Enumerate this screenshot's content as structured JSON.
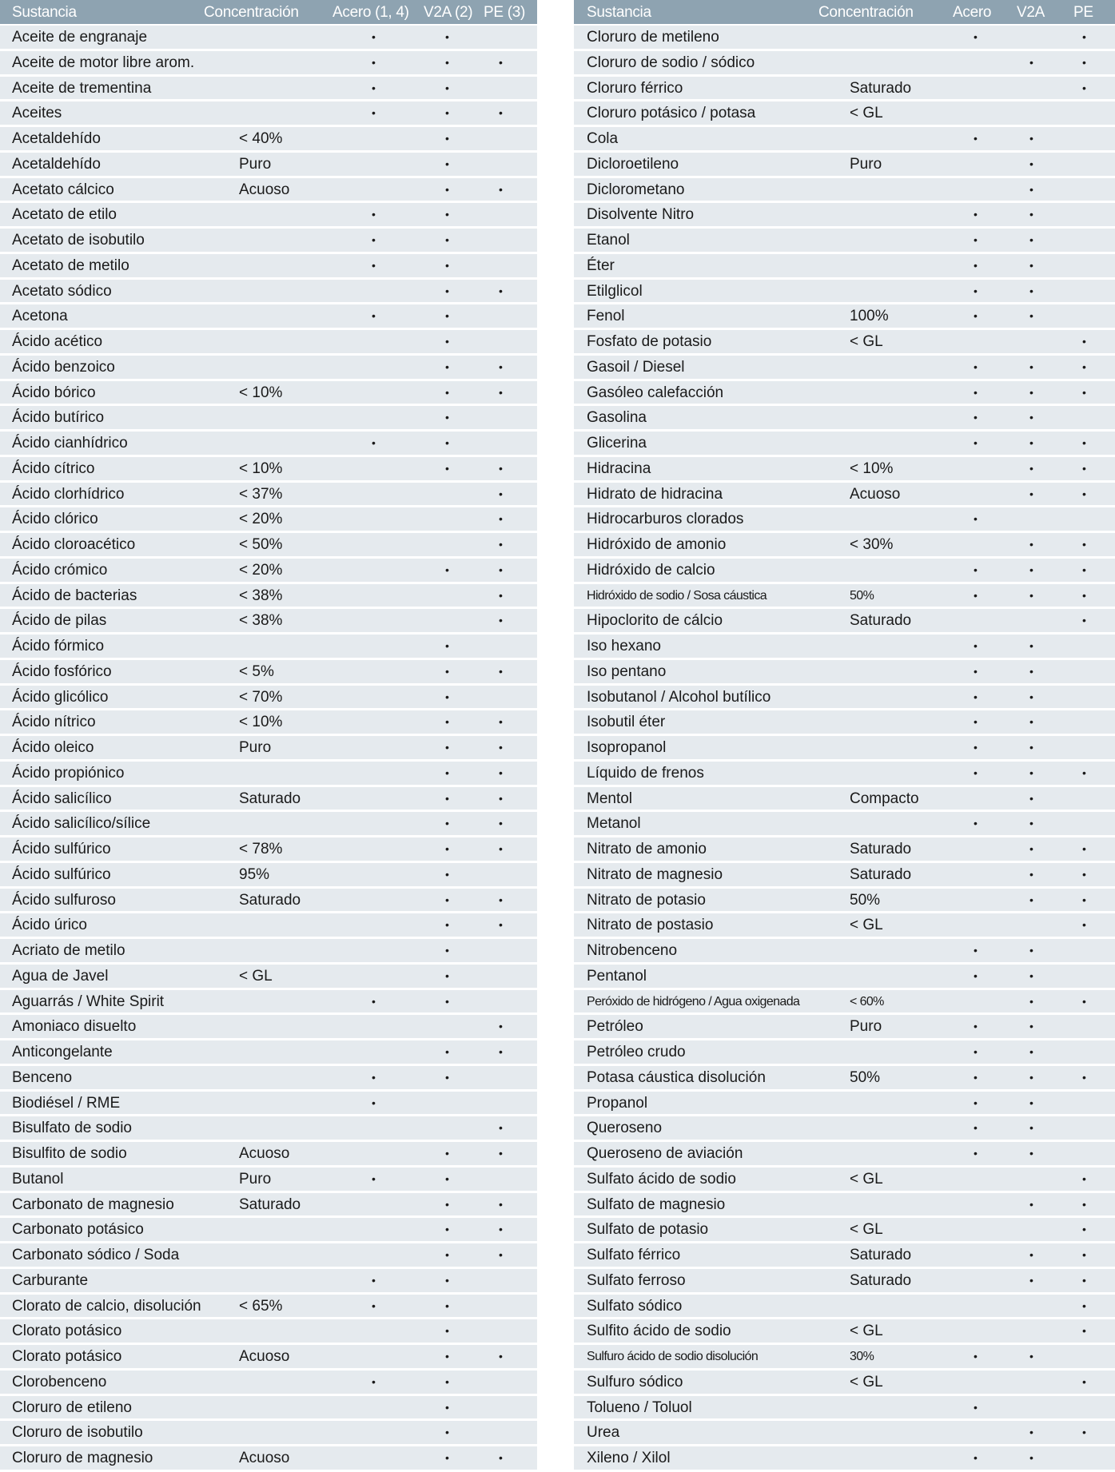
{
  "mark": "•",
  "left": {
    "headers": [
      "Sustancia",
      "Concentración",
      "Acero (1, 4)",
      "V2A (2)",
      "PE (3)"
    ],
    "rows": [
      [
        "Aceite de engranaje",
        "",
        true,
        true,
        false
      ],
      [
        "Aceite de motor libre arom.",
        "",
        true,
        true,
        true
      ],
      [
        "Aceite de trementina",
        "",
        true,
        true,
        false
      ],
      [
        "Aceites",
        "",
        true,
        true,
        true
      ],
      [
        "Acetaldehído",
        "< 40%",
        false,
        true,
        false
      ],
      [
        "Acetaldehído",
        "Puro",
        false,
        true,
        false
      ],
      [
        "Acetato cálcico",
        "Acuoso",
        false,
        true,
        true
      ],
      [
        "Acetato de etilo",
        "",
        true,
        true,
        false
      ],
      [
        "Acetato de isobutilo",
        "",
        true,
        true,
        false
      ],
      [
        "Acetato de metilo",
        "",
        true,
        true,
        false
      ],
      [
        "Acetato sódico",
        "",
        false,
        true,
        true
      ],
      [
        "Acetona",
        "",
        true,
        true,
        false
      ],
      [
        "Ácido acético",
        "",
        false,
        true,
        false
      ],
      [
        "Ácido benzoico",
        "",
        false,
        true,
        true
      ],
      [
        "Ácido bórico",
        "< 10%",
        false,
        true,
        true
      ],
      [
        "Ácido butírico",
        "",
        false,
        true,
        false
      ],
      [
        "Ácido cianhídrico",
        "",
        true,
        true,
        false
      ],
      [
        "Ácido cítrico",
        "< 10%",
        false,
        true,
        true
      ],
      [
        "Ácido clorhídrico",
        "< 37%",
        false,
        false,
        true
      ],
      [
        "Ácido clórico",
        "< 20%",
        false,
        false,
        true
      ],
      [
        "Ácido cloroacético",
        "< 50%",
        false,
        false,
        true
      ],
      [
        "Ácido crómico",
        "< 20%",
        false,
        true,
        true
      ],
      [
        "Ácido de bacterias",
        "< 38%",
        false,
        false,
        true
      ],
      [
        "Ácido de pilas",
        "< 38%",
        false,
        false,
        true
      ],
      [
        "Ácido fórmico",
        "",
        false,
        true,
        false
      ],
      [
        "Ácido fosfórico",
        "< 5%",
        false,
        true,
        true
      ],
      [
        "Ácido glicólico",
        "< 70%",
        false,
        true,
        false
      ],
      [
        "Ácido nítrico",
        "< 10%",
        false,
        true,
        true
      ],
      [
        "Ácido oleico",
        "Puro",
        false,
        true,
        true
      ],
      [
        "Ácido propiónico",
        "",
        false,
        true,
        true
      ],
      [
        "Ácido salicílico",
        "Saturado",
        false,
        true,
        true
      ],
      [
        "Ácido salicílico/sílice",
        "",
        false,
        true,
        true
      ],
      [
        "Ácido sulfúrico",
        "< 78%",
        false,
        true,
        true
      ],
      [
        "Ácido sulfúrico",
        "95%",
        false,
        true,
        false
      ],
      [
        "Ácido sulfuroso",
        "Saturado",
        false,
        true,
        true
      ],
      [
        "Ácido úrico",
        "",
        false,
        true,
        true
      ],
      [
        "Acriato de metilo",
        "",
        false,
        true,
        false
      ],
      [
        "Agua de Javel",
        "< GL",
        false,
        true,
        false
      ],
      [
        "Aguarrás / White Spirit",
        "",
        true,
        true,
        false
      ],
      [
        "Amoniaco disuelto",
        "",
        false,
        false,
        true
      ],
      [
        "Anticongelante",
        "",
        false,
        true,
        true
      ],
      [
        "Benceno",
        "",
        true,
        true,
        false
      ],
      [
        "Biodiésel / RME",
        "",
        true,
        false,
        false
      ],
      [
        "Bisulfato de sodio",
        "",
        false,
        false,
        true
      ],
      [
        "Bisulfito de sodio",
        "Acuoso",
        false,
        true,
        true
      ],
      [
        "Butanol",
        "Puro",
        true,
        true,
        false
      ],
      [
        "Carbonato de magnesio",
        "Saturado",
        false,
        true,
        true
      ],
      [
        "Carbonato potásico",
        "",
        false,
        true,
        true
      ],
      [
        "Carbonato sódico / Soda",
        "",
        false,
        true,
        true
      ],
      [
        "Carburante",
        "",
        true,
        true,
        false
      ],
      [
        "Clorato de calcio, disolución",
        "< 65%",
        true,
        true,
        false
      ],
      [
        "Clorato potásico",
        "",
        false,
        true,
        false
      ],
      [
        "Clorato potásico",
        "Acuoso",
        false,
        true,
        true
      ],
      [
        "Clorobenceno",
        "",
        true,
        true,
        false
      ],
      [
        "Cloruro de etileno",
        "",
        false,
        true,
        false
      ],
      [
        "Cloruro de isobutilo",
        "",
        false,
        true,
        false
      ],
      [
        "Cloruro de magnesio",
        "Acuoso",
        false,
        true,
        true
      ]
    ]
  },
  "right": {
    "headers": [
      "Sustancia",
      "Concentración",
      "Acero",
      "V2A",
      "PE"
    ],
    "rows": [
      [
        "Cloruro de metileno",
        "",
        true,
        false,
        true
      ],
      [
        "Cloruro de sodio / sódico",
        "",
        false,
        true,
        true
      ],
      [
        "Cloruro férrico",
        "Saturado",
        false,
        false,
        true
      ],
      [
        "Cloruro potásico / potasa",
        "< GL",
        false,
        false,
        false
      ],
      [
        "Cola",
        "",
        true,
        true,
        false
      ],
      [
        "Dicloroetileno",
        "Puro",
        false,
        true,
        false
      ],
      [
        "Diclorometano",
        "",
        false,
        true,
        false
      ],
      [
        "Disolvente Nitro",
        "",
        true,
        true,
        false
      ],
      [
        "Etanol",
        "",
        true,
        true,
        false
      ],
      [
        "Éter",
        "",
        true,
        true,
        false
      ],
      [
        "Etilglicol",
        "",
        true,
        true,
        false
      ],
      [
        "Fenol",
        "100%",
        true,
        true,
        false
      ],
      [
        "Fosfato de potasio",
        "< GL",
        false,
        false,
        true
      ],
      [
        "Gasoil / Diesel",
        "",
        true,
        true,
        true
      ],
      [
        "Gasóleo calefacción",
        "",
        true,
        true,
        true
      ],
      [
        "Gasolina",
        "",
        true,
        true,
        false
      ],
      [
        "Glicerina",
        "",
        true,
        true,
        true
      ],
      [
        "Hidracina",
        "< 10%",
        false,
        true,
        true
      ],
      [
        "Hidrato de hidracina",
        "Acuoso",
        false,
        true,
        true
      ],
      [
        "Hidrocarburos clorados",
        "",
        true,
        false,
        false
      ],
      [
        "Hidróxido de amonio",
        "< 30%",
        false,
        true,
        true
      ],
      [
        "Hidróxido de calcio",
        "",
        true,
        true,
        true
      ],
      [
        "Hidróxido de sodio / Sosa cáustica",
        "50%",
        true,
        true,
        true
      ],
      [
        "Hipoclorito de cálcio",
        "Saturado",
        false,
        false,
        true
      ],
      [
        "Iso hexano",
        "",
        true,
        true,
        false
      ],
      [
        "Iso pentano",
        "",
        true,
        true,
        false
      ],
      [
        "Isobutanol / Alcohol butílico",
        "",
        true,
        true,
        false
      ],
      [
        "Isobutil éter",
        "",
        true,
        true,
        false
      ],
      [
        "Isopropanol",
        "",
        true,
        true,
        false
      ],
      [
        "Líquido de frenos",
        "",
        true,
        true,
        true
      ],
      [
        "Mentol",
        "Compacto",
        false,
        true,
        false
      ],
      [
        "Metanol",
        "",
        true,
        true,
        false
      ],
      [
        "Nitrato de amonio",
        "Saturado",
        false,
        true,
        true
      ],
      [
        "Nitrato de magnesio",
        "Saturado",
        false,
        true,
        true
      ],
      [
        "Nitrato de potasio",
        "50%",
        false,
        true,
        true
      ],
      [
        "Nitrato de postasio",
        "< GL",
        false,
        false,
        true
      ],
      [
        "Nitrobenceno",
        "",
        true,
        true,
        false
      ],
      [
        "Pentanol",
        "",
        true,
        true,
        false
      ],
      [
        "Peróxido de hidrógeno / Agua oxigenada",
        "< 60%",
        false,
        true,
        true
      ],
      [
        "Petróleo",
        "Puro",
        true,
        true,
        false
      ],
      [
        "Petróleo crudo",
        "",
        true,
        true,
        false
      ],
      [
        "Potasa cáustica disolución",
        "50%",
        true,
        true,
        true
      ],
      [
        "Propanol",
        "",
        true,
        true,
        false
      ],
      [
        "Queroseno",
        "",
        true,
        true,
        false
      ],
      [
        "Queroseno de aviación",
        "",
        true,
        true,
        false
      ],
      [
        "Sulfato ácido de sodio",
        "< GL",
        false,
        false,
        true
      ],
      [
        "Sulfato de magnesio",
        "",
        false,
        true,
        true
      ],
      [
        "Sulfato de potasio",
        "< GL",
        false,
        false,
        true
      ],
      [
        "Sulfato férrico",
        "Saturado",
        false,
        true,
        true
      ],
      [
        "Sulfato ferroso",
        "Saturado",
        false,
        true,
        true
      ],
      [
        "Sulfato sódico",
        "",
        false,
        false,
        true
      ],
      [
        "Sulfito ácido de sodio",
        "< GL",
        false,
        false,
        true
      ],
      [
        "Sulfuro ácido de sodio disolución",
        "30%",
        true,
        true,
        false
      ],
      [
        "Sulfuro sódico",
        "< GL",
        false,
        false,
        true
      ],
      [
        "Tolueno / Toluol",
        "",
        true,
        false,
        false
      ],
      [
        "Urea",
        "",
        false,
        true,
        true
      ],
      [
        "Xileno / Xilol",
        "",
        true,
        true,
        false
      ]
    ]
  }
}
